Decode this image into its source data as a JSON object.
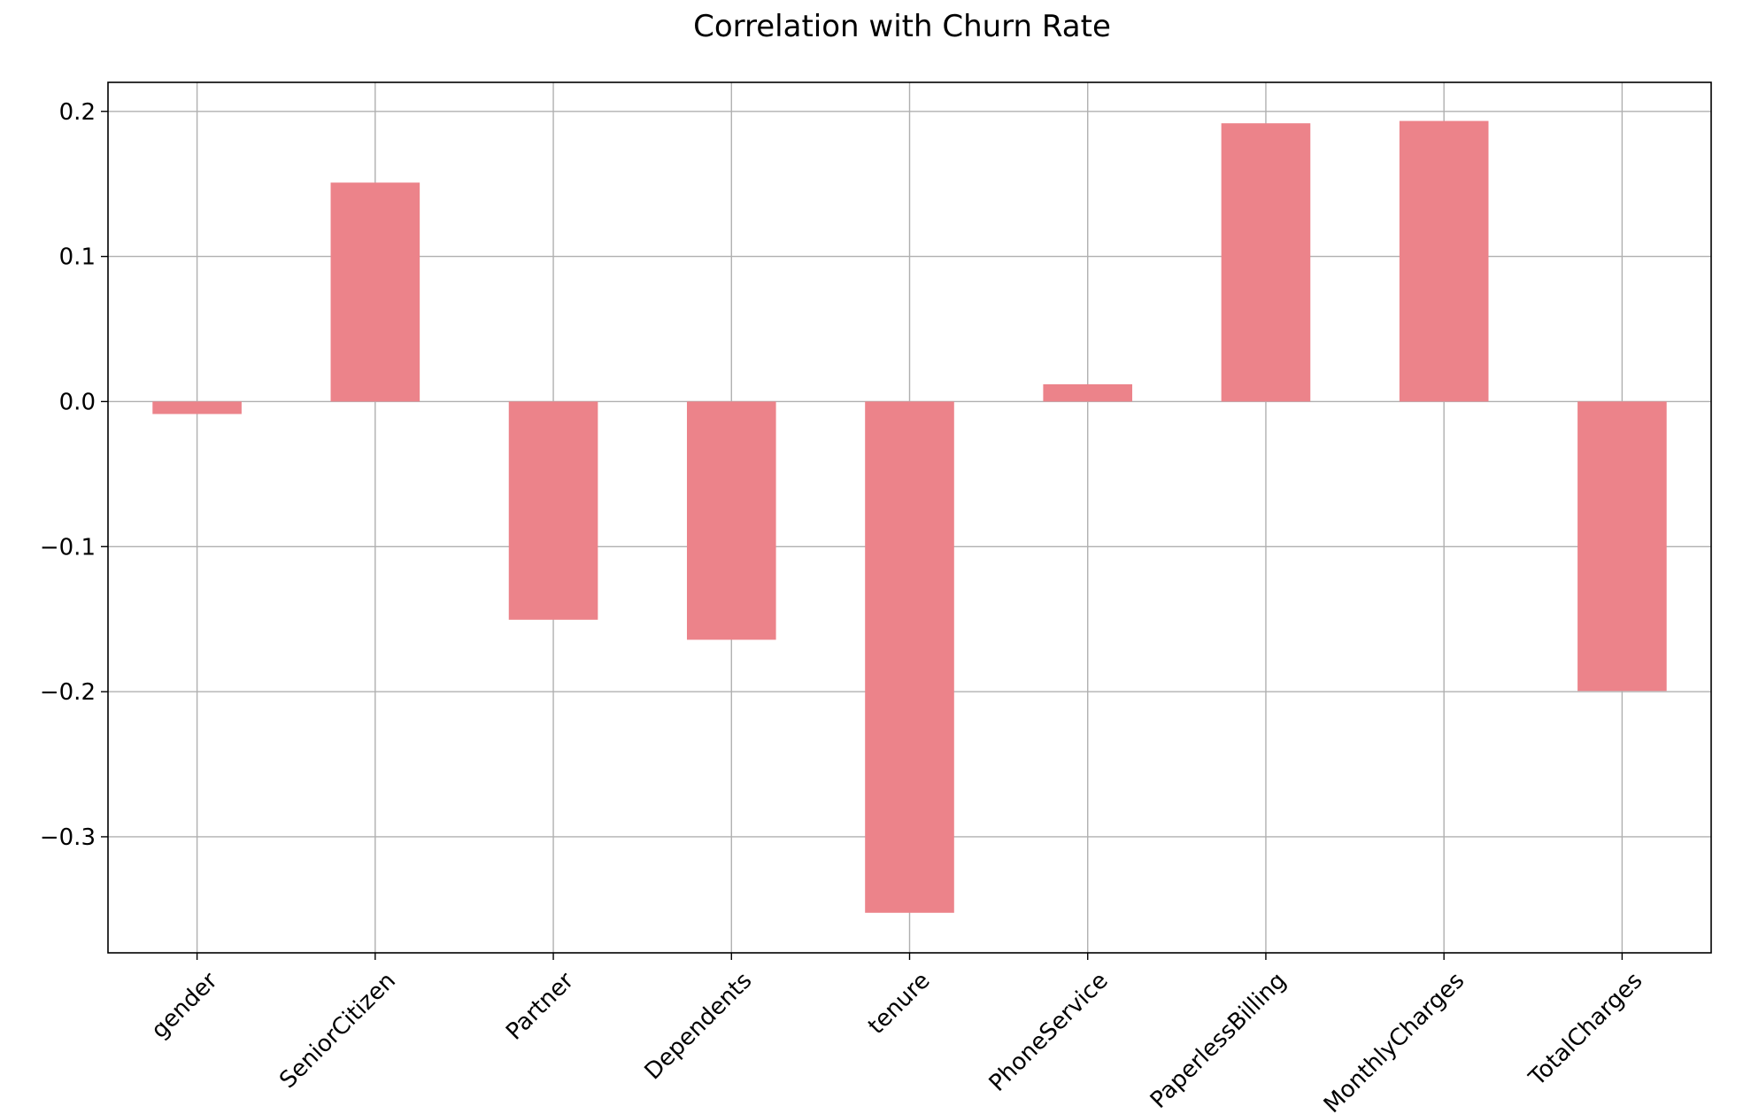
{
  "chart_data": {
    "type": "bar",
    "title": "Correlation with Churn Rate",
    "xlabel": "",
    "ylabel": "",
    "categories": [
      "gender",
      "SeniorCitizen",
      "Partner",
      "Dependents",
      "tenure",
      "PhoneService",
      "PaperlessBilling",
      "MonthlyCharges",
      "TotalCharges"
    ],
    "values": [
      -0.0086,
      0.1509,
      -0.1504,
      -0.1642,
      -0.3524,
      0.0119,
      0.1918,
      0.1934,
      -0.1995
    ],
    "ylim": [
      -0.38,
      0.22
    ],
    "yticks": [
      0.2,
      0.1,
      0.0,
      -0.1,
      -0.2,
      -0.3
    ],
    "ytick_labels": [
      "0.2",
      "0.1",
      "0.0",
      "−0.1",
      "−0.2",
      "−0.3"
    ],
    "grid": true,
    "legend": "none",
    "bar_color": "#ec838a"
  }
}
